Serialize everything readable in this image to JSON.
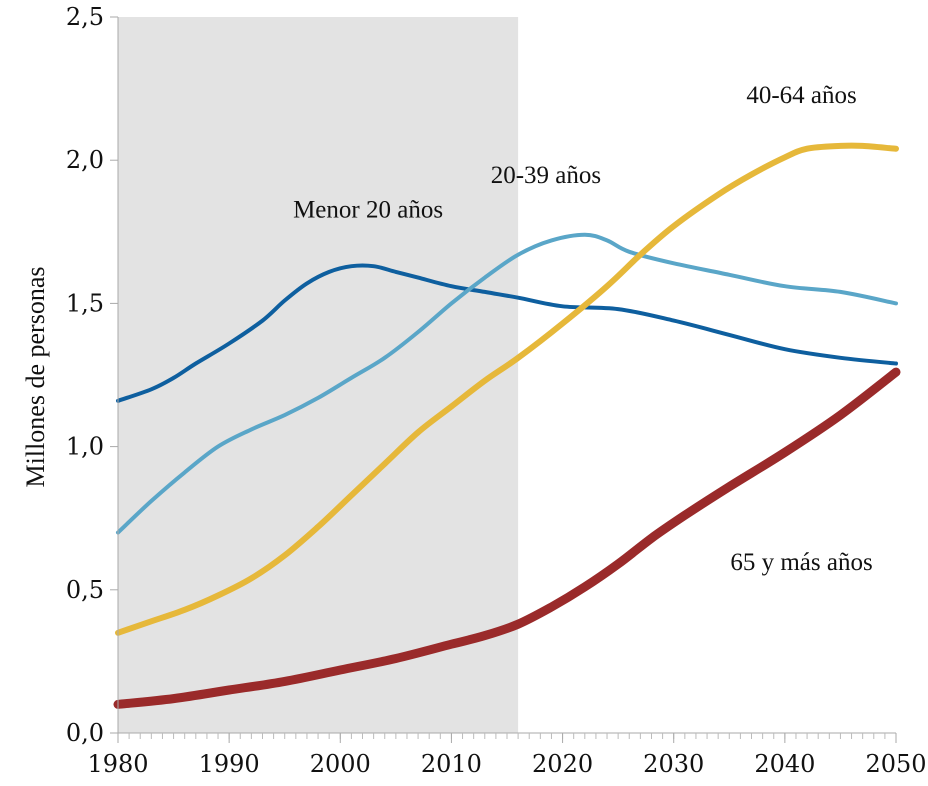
{
  "chart_data": {
    "type": "line",
    "title": "",
    "xlabel": "",
    "ylabel": "Millones de personas",
    "xlim": [
      1980,
      2050
    ],
    "ylim": [
      0,
      2.5
    ],
    "x_ticks": [
      "1980",
      "1990",
      "2000",
      "2010",
      "2020",
      "2030",
      "2040",
      "2050"
    ],
    "y_ticks": [
      "0,0",
      "0,5",
      "1,0",
      "1,5",
      "2,0",
      "2,5"
    ],
    "shaded_region": {
      "x_start": 1980,
      "x_end": 2016,
      "color": "#e3e3e3"
    },
    "grid": false,
    "series": [
      {
        "name": "Menor 20 años",
        "color": "#0e5f9f",
        "x": [
          1980,
          1983,
          1985,
          1987,
          1990,
          1993,
          1995,
          1997,
          1999,
          2001,
          2003,
          2005,
          2007,
          2010,
          2013,
          2016,
          2020,
          2025,
          2030,
          2035,
          2040,
          2045,
          2050
        ],
        "values": [
          1.16,
          1.2,
          1.24,
          1.29,
          1.36,
          1.44,
          1.51,
          1.57,
          1.61,
          1.63,
          1.63,
          1.61,
          1.59,
          1.56,
          1.54,
          1.52,
          1.49,
          1.48,
          1.44,
          1.39,
          1.34,
          1.31,
          1.29
        ]
      },
      {
        "name": "20-39 años",
        "color": "#5aa6c8",
        "x": [
          1980,
          1983,
          1986,
          1989,
          1992,
          1995,
          1998,
          2001,
          2004,
          2007,
          2010,
          2013,
          2016,
          2019,
          2022,
          2024,
          2026,
          2030,
          2035,
          2040,
          2045,
          2050
        ],
        "values": [
          0.7,
          0.81,
          0.91,
          1.0,
          1.06,
          1.11,
          1.17,
          1.24,
          1.31,
          1.4,
          1.5,
          1.59,
          1.67,
          1.72,
          1.74,
          1.72,
          1.68,
          1.64,
          1.6,
          1.56,
          1.54,
          1.5
        ]
      },
      {
        "name": "40-64 años",
        "color": "#e6b83a",
        "x": [
          1980,
          1983,
          1986,
          1989,
          1992,
          1995,
          1998,
          2001,
          2004,
          2007,
          2010,
          2013,
          2016,
          2020,
          2024,
          2027,
          2030,
          2034,
          2037,
          2040,
          2042,
          2045,
          2047,
          2050
        ],
        "values": [
          0.35,
          0.39,
          0.43,
          0.48,
          0.54,
          0.62,
          0.72,
          0.83,
          0.94,
          1.05,
          1.14,
          1.23,
          1.31,
          1.43,
          1.56,
          1.67,
          1.77,
          1.88,
          1.95,
          2.01,
          2.04,
          2.05,
          2.05,
          2.04
        ]
      },
      {
        "name": "65 y más años",
        "color": "#9a2a2a",
        "x": [
          1980,
          1985,
          1990,
          1995,
          2000,
          2005,
          2010,
          2013,
          2016,
          2019,
          2022,
          2025,
          2028,
          2031,
          2035,
          2040,
          2045,
          2050
        ],
        "values": [
          0.1,
          0.12,
          0.15,
          0.18,
          0.22,
          0.26,
          0.31,
          0.34,
          0.38,
          0.44,
          0.51,
          0.59,
          0.68,
          0.76,
          0.86,
          0.98,
          1.11,
          1.26
        ]
      }
    ]
  }
}
